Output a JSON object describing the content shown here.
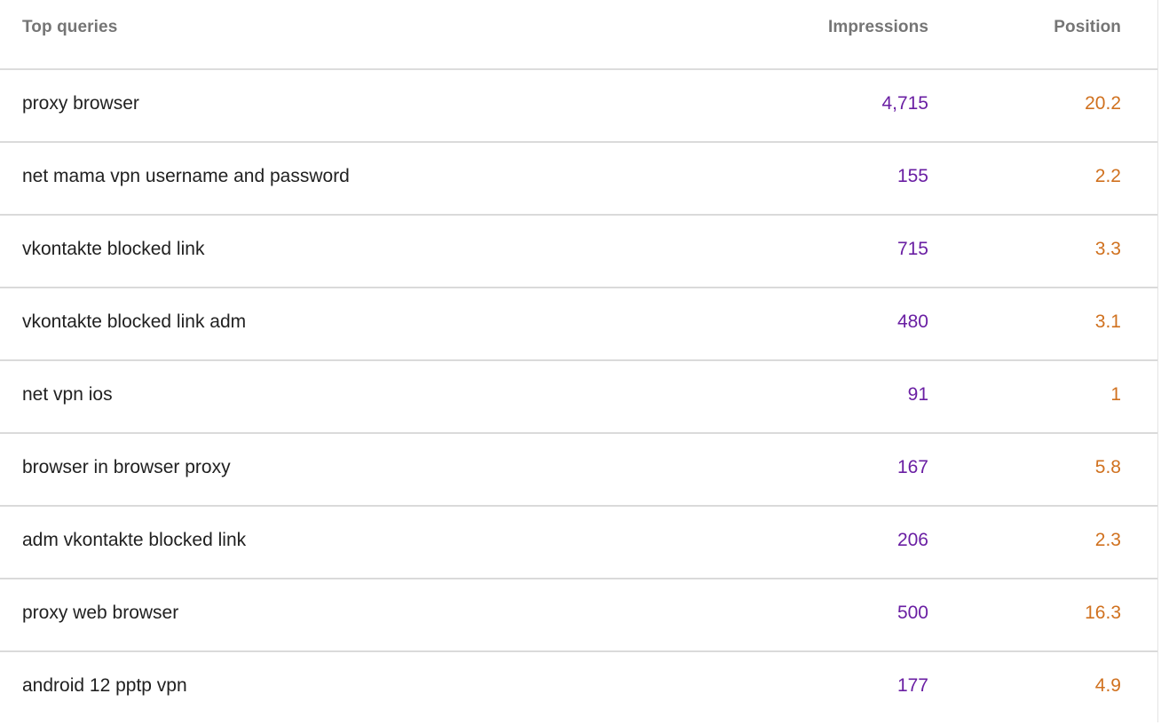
{
  "table": {
    "headers": {
      "query": "Top queries",
      "impressions": "Impressions",
      "position": "Position"
    },
    "rows": [
      {
        "query": "proxy browser",
        "impressions": "4,715",
        "position": "20.2"
      },
      {
        "query": "net mama vpn username and password",
        "impressions": "155",
        "position": "2.2"
      },
      {
        "query": "vkontakte blocked link",
        "impressions": "715",
        "position": "3.3"
      },
      {
        "query": "vkontakte blocked link adm",
        "impressions": "480",
        "position": "3.1"
      },
      {
        "query": "net vpn ios",
        "impressions": "91",
        "position": "1"
      },
      {
        "query": "browser in browser proxy",
        "impressions": "167",
        "position": "5.8"
      },
      {
        "query": "adm vkontakte blocked link",
        "impressions": "206",
        "position": "2.3"
      },
      {
        "query": "proxy web browser",
        "impressions": "500",
        "position": "16.3"
      },
      {
        "query": "android 12 pptp vpn",
        "impressions": "177",
        "position": "4.9"
      }
    ]
  },
  "colors": {
    "impressions": "#6a1fa3",
    "position": "#d0711f",
    "header_text": "#757575",
    "query_text": "#212121"
  }
}
